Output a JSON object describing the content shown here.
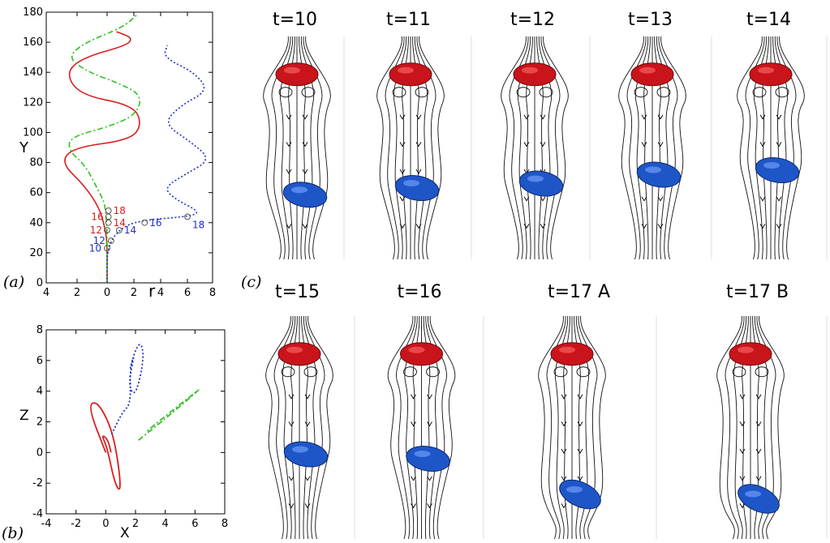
{
  "figure": {
    "label_a": "(a)",
    "label_b": "(b)",
    "label_c": "(c)"
  },
  "chart_data": [
    {
      "type": "line",
      "panel": "(a)",
      "xlabel": "r",
      "ylabel": "Y",
      "x_ticks": [
        "4",
        "2",
        "0",
        "2",
        "4",
        "6",
        "8"
      ],
      "y_ticks": [
        "0",
        "20",
        "40",
        "60",
        "80",
        "100",
        "120",
        "140",
        "160",
        "180"
      ],
      "xlim_note": "left half mirrored: ticks read 4,2,0 then 2,4,6,8",
      "ylim": [
        0,
        180
      ],
      "colors": {
        "red": "#d91e1e",
        "green": "#2fc21f",
        "blue": "#1f2fc8",
        "gray": "#555555"
      },
      "series": [
        {
          "color": "red",
          "style": "solid",
          "side": "left",
          "points": [
            [
              0,
              0
            ],
            [
              0,
              25
            ],
            [
              0.1,
              35
            ],
            [
              0.5,
              50
            ],
            [
              1.5,
              65
            ],
            [
              3.0,
              80
            ],
            [
              2.2,
              90
            ],
            [
              -1.7,
              95
            ],
            [
              -2.6,
              105
            ],
            [
              -2.0,
              118
            ],
            [
              1.8,
              125
            ],
            [
              2.7,
              140
            ],
            [
              1.5,
              150
            ],
            [
              -1.5,
              158
            ],
            [
              -1.9,
              163
            ],
            [
              -0.7,
              167
            ]
          ]
        },
        {
          "color": "green",
          "style": "dashdot",
          "side": "left",
          "points": [
            [
              0,
              0
            ],
            [
              0,
              50
            ],
            [
              0.6,
              62
            ],
            [
              1.4,
              78
            ],
            [
              2.5,
              88
            ],
            [
              2.4,
              97
            ],
            [
              -0.2,
              104
            ],
            [
              -2.2,
              112
            ],
            [
              -2.6,
              125
            ],
            [
              -0.8,
              133
            ],
            [
              1.2,
              140
            ],
            [
              2.6,
              150
            ],
            [
              1.4,
              160
            ],
            [
              -1.2,
              170
            ],
            [
              -2.2,
              178
            ]
          ]
        },
        {
          "color": "blue",
          "style": "dotted",
          "side": "right",
          "points": [
            [
              0,
              0
            ],
            [
              0,
              25
            ],
            [
              1.2,
              38
            ],
            [
              3.0,
              42
            ],
            [
              6.0,
              44
            ],
            [
              7.0,
              47
            ],
            [
              5.2,
              55
            ],
            [
              4.2,
              63
            ],
            [
              5.8,
              72
            ],
            [
              7.8,
              82
            ],
            [
              6.2,
              94
            ],
            [
              4.2,
              106
            ],
            [
              5.5,
              118
            ],
            [
              7.6,
              128
            ],
            [
              6.5,
              140
            ],
            [
              4.2,
              150
            ],
            [
              4.5,
              158
            ]
          ]
        }
      ],
      "markers": [
        {
          "label": "10",
          "color": "blue",
          "r": 0.0,
          "y": 23
        },
        {
          "label": "12",
          "color": "blue",
          "r": 0.3,
          "y": 28
        },
        {
          "label": "14",
          "color": "blue",
          "r": 0.9,
          "y": 35
        },
        {
          "label": "16",
          "color": "blue",
          "r": 2.8,
          "y": 40
        },
        {
          "label": "18",
          "color": "blue",
          "r": 6.0,
          "y": 44
        },
        {
          "label": "12",
          "color": "red",
          "r": 0.0,
          "y": 35
        },
        {
          "label": "14",
          "color": "red",
          "r": 0.1,
          "y": 40
        },
        {
          "label": "16",
          "color": "red",
          "r": 0.1,
          "y": 44
        },
        {
          "label": "18",
          "color": "red",
          "r": 0.1,
          "y": 48
        }
      ]
    },
    {
      "type": "line",
      "panel": "(b)",
      "xlabel": "X",
      "ylabel": "Z",
      "x_ticks": [
        "-4",
        "-2",
        "0",
        "2",
        "4",
        "6",
        "8"
      ],
      "y_ticks": [
        "-4",
        "-2",
        "0",
        "2",
        "4",
        "6",
        "8"
      ],
      "xlim": [
        -4,
        8
      ],
      "ylim": [
        -4,
        8
      ],
      "series": [
        {
          "color": "red",
          "style": "solid",
          "points": [
            [
              0,
              0
            ],
            [
              -1.2,
              3.0
            ],
            [
              -0.6,
              3.4
            ],
            [
              0.4,
              1.6
            ],
            [
              0.9,
              -1.0
            ],
            [
              1.0,
              -2.6
            ],
            [
              0.6,
              -2.0
            ],
            [
              0.1,
              0.3
            ],
            [
              -0.3,
              1.2
            ],
            [
              0.2,
              0.8
            ],
            [
              0.5,
              -0.8
            ]
          ]
        },
        {
          "color": "green",
          "style": "dashdot",
          "points": [
            [
              2.2,
              0.8
            ],
            [
              4.5,
              2.6
            ],
            [
              6.4,
              4.2
            ],
            [
              6.0,
              3.9
            ],
            [
              3.0,
              1.6
            ],
            [
              2.5,
              1.1
            ]
          ]
        },
        {
          "color": "blue",
          "style": "dotted",
          "points": [
            [
              0.4,
              1.2
            ],
            [
              1.1,
              2.6
            ],
            [
              1.7,
              3.2
            ],
            [
              1.6,
              5.6
            ],
            [
              2.3,
              7.4
            ],
            [
              2.6,
              6.2
            ],
            [
              2.0,
              3.6
            ],
            [
              1.5,
              4.4
            ],
            [
              2.0,
              6.8
            ],
            [
              1.3,
              4.2
            ]
          ]
        }
      ]
    }
  ],
  "snapshots": {
    "row1": [
      {
        "title": "t=10",
        "red_y": 0.17,
        "blue_y": 0.71
      },
      {
        "title": "t=11",
        "red_y": 0.17,
        "blue_y": 0.68
      },
      {
        "title": "t=12",
        "red_y": 0.17,
        "blue_y": 0.66
      },
      {
        "title": "t=13",
        "red_y": 0.17,
        "blue_y": 0.62
      },
      {
        "title": "t=14",
        "red_y": 0.17,
        "blue_y": 0.6
      }
    ],
    "row2": [
      {
        "title": "t=15",
        "red_y": 0.17,
        "blue_y": 0.62
      },
      {
        "title": "t=16",
        "red_y": 0.17,
        "blue_y": 0.64
      },
      {
        "title": "t=17 A",
        "red_y": 0.17,
        "blue_y": 0.8
      },
      {
        "title": "t=17 B",
        "red_y": 0.17,
        "blue_y": 0.82
      }
    ],
    "colors": {
      "red_particle": "#c8141a",
      "blue_particle": "#1e56c8",
      "streamline": "#111111"
    }
  }
}
